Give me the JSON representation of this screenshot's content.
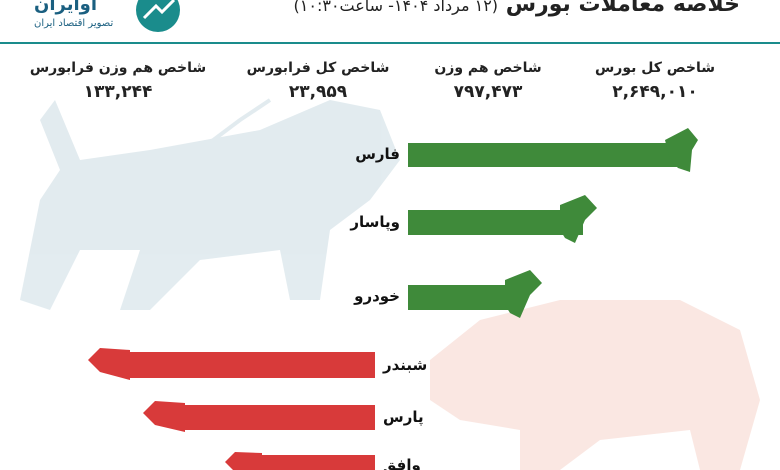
{
  "header": {
    "title": "خلاصه معاملات بورس",
    "subtitle": "(۱۲ مرداد ۱۴۰۴- ساعت۱۰:۳۰)",
    "logo": "آوایران",
    "logo_tagline": "تصویر اقتصاد ایران"
  },
  "indices": [
    {
      "label": "شاخص کل بورس",
      "value": "۲,۶۴۹,۰۱۰"
    },
    {
      "label": "شاخص هم وزن",
      "value": "۷۹۷,۴۷۳"
    },
    {
      "label": "شاخص کل فرابورس",
      "value": "۲۳,۹۵۹"
    },
    {
      "label": "شاخص هم وزن فرابورس",
      "value": "۱۳۳,۲۴۴"
    }
  ],
  "gainers": [
    "فارس",
    "وپاسار",
    "خودرو"
  ],
  "losers": [
    "شبندر",
    "پارس",
    "وافق"
  ]
}
